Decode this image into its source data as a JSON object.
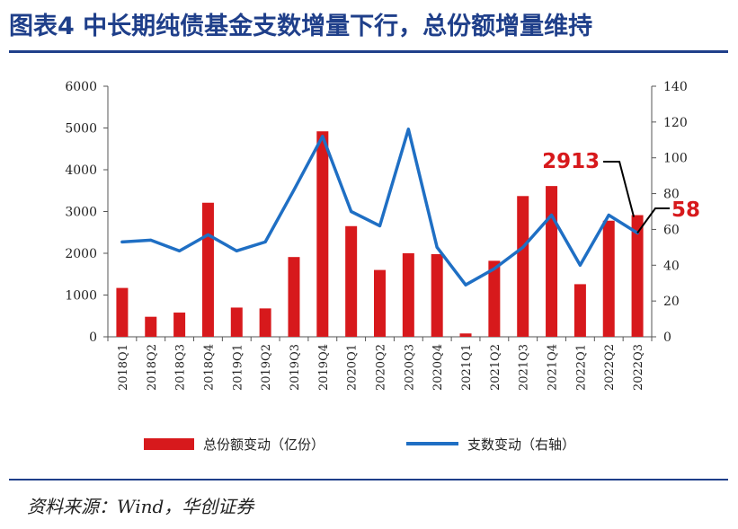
{
  "figure": {
    "title": "图表4 中长期纯债基金支数增量下行，总份额增量维持",
    "source": "资料来源：Wind，华创证券"
  },
  "chart_data": {
    "type": "bar+line",
    "categories": [
      "2018Q1",
      "2018Q2",
      "2018Q3",
      "2018Q4",
      "2019Q1",
      "2019Q2",
      "2019Q3",
      "2019Q4",
      "2020Q1",
      "2020Q2",
      "2020Q3",
      "2020Q4",
      "2021Q1",
      "2021Q2",
      "2021Q3",
      "2021Q4",
      "2022Q1",
      "2022Q2",
      "2022Q3"
    ],
    "series": [
      {
        "name": "总份额变动（亿份）",
        "type": "bar",
        "axis": "left",
        "color": "#d7191c",
        "values": [
          1170,
          480,
          580,
          3210,
          700,
          680,
          1910,
          4920,
          2650,
          1600,
          2000,
          1980,
          80,
          1820,
          3370,
          3610,
          1260,
          2780,
          2913
        ]
      },
      {
        "name": "支数变动（右轴）",
        "type": "line",
        "axis": "right",
        "color": "#1f6fc4",
        "values": [
          53,
          54,
          48,
          57,
          48,
          53,
          82,
          112,
          70,
          62,
          116,
          50,
          29,
          38,
          50,
          68,
          40,
          68,
          58
        ]
      }
    ],
    "left_axis": {
      "min": 0,
      "max": 6000,
      "ticks": [
        "0",
        "1000",
        "2000",
        "3000",
        "4000",
        "5000",
        "6000"
      ]
    },
    "right_axis": {
      "min": 0,
      "max": 140,
      "ticks": [
        "0",
        "20",
        "40",
        "60",
        "80",
        "100",
        "120",
        "140"
      ]
    },
    "annotations": [
      {
        "series": "总份额变动（亿份）",
        "category": "2022Q3",
        "label": "2913"
      },
      {
        "series": "支数变动（右轴）",
        "category": "2022Q3",
        "label": "58"
      }
    ],
    "legend": {
      "position": "bottom"
    }
  }
}
